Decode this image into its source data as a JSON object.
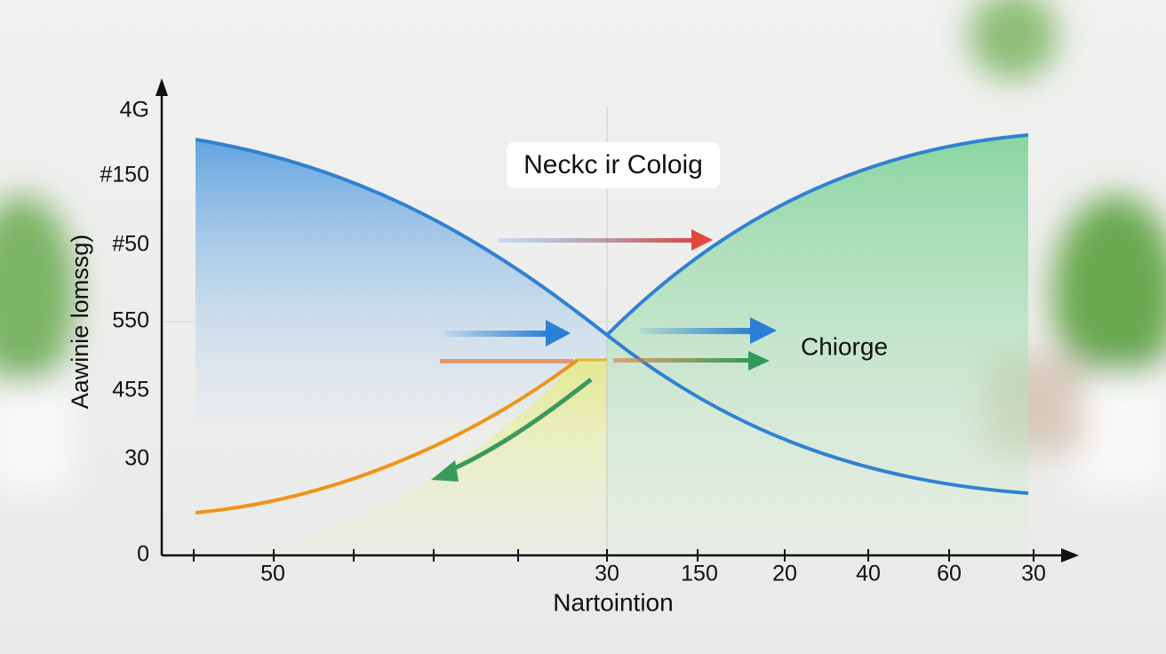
{
  "title": "Neckc ir Coloig",
  "y_axis": {
    "label": "Aawinie lomssg)",
    "tick_labels": [
      "4G",
      "#150",
      "#50",
      "550",
      "455",
      "30",
      "0"
    ]
  },
  "x_axis": {
    "label": "Nartointion",
    "tick_labels": [
      "50",
      "30",
      "150",
      "20",
      "40",
      "60",
      "30"
    ]
  },
  "annotation": "Chiorge"
}
